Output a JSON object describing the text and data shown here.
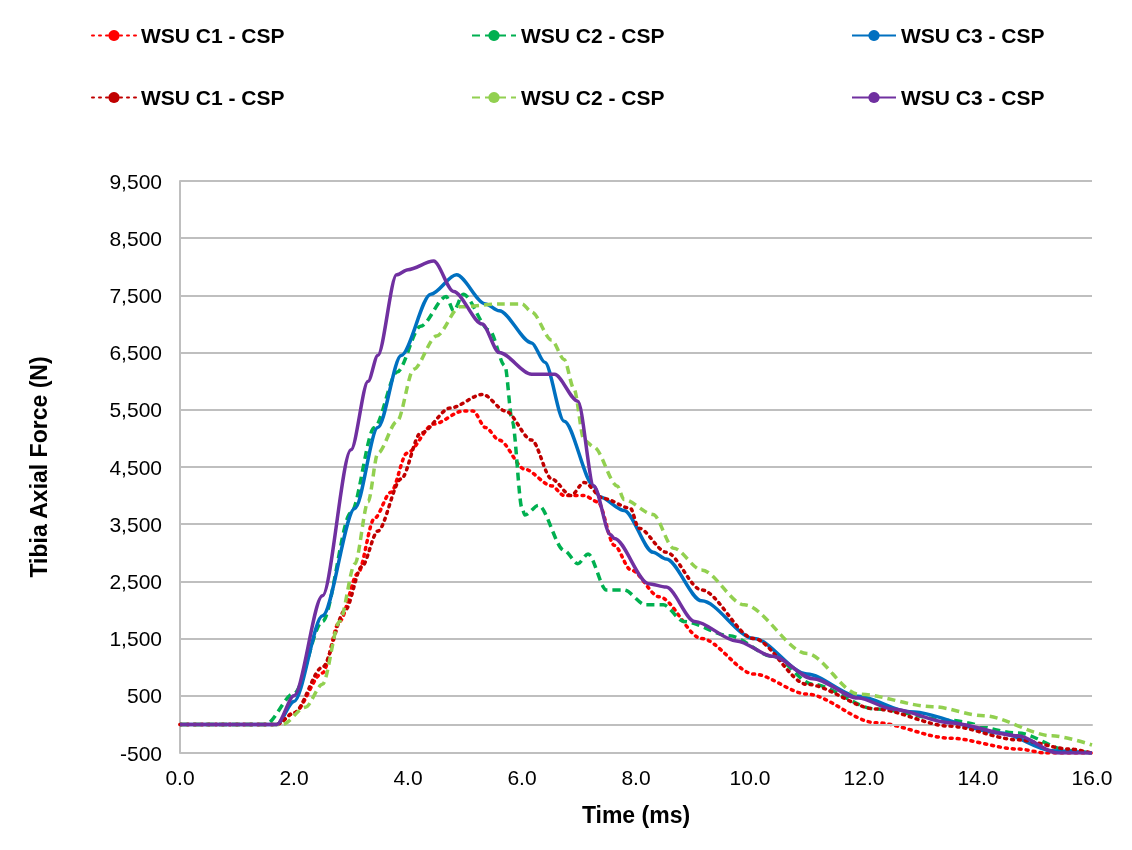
{
  "chart_data": {
    "type": "line",
    "xlabel": "Time (ms)",
    "ylabel": "Tibia Axial Force (N)",
    "xlim": [
      0,
      16
    ],
    "xticks": [
      {
        "value": 0,
        "label": "0.0"
      },
      {
        "value": 2,
        "label": "2.0"
      },
      {
        "value": 4,
        "label": "4.0"
      },
      {
        "value": 6,
        "label": "6.0"
      },
      {
        "value": 8,
        "label": "8.0"
      },
      {
        "value": 10,
        "label": "10.0"
      },
      {
        "value": 12,
        "label": "12.0"
      },
      {
        "value": 14,
        "label": "14.0"
      },
      {
        "value": 16,
        "label": "16.0"
      }
    ],
    "ylim": [
      -500,
      9500
    ],
    "yticks": [
      -500,
      500,
      {
        "value": 1500,
        "label": "1,500"
      },
      {
        "value": 2500,
        "label": "2,500"
      },
      {
        "value": 3500,
        "label": "3,500"
      },
      {
        "value": 4500,
        "label": "4,500"
      },
      {
        "value": 5500,
        "label": "5,500"
      },
      {
        "value": 6500,
        "label": "6,500"
      },
      {
        "value": 7500,
        "label": "7,500"
      },
      {
        "value": 8500,
        "label": "8,500"
      },
      {
        "value": 9500,
        "label": "9,500"
      }
    ],
    "grid": "y",
    "legend": "top",
    "marker": "none",
    "ref_lines": [
      {
        "axis": "y",
        "value": 0,
        "color": "#bfbfbf"
      }
    ],
    "series": [
      {
        "name": "WSU C1 - CSP",
        "color": "#ff0000",
        "line_style": "dotted",
        "x": [
          0,
          1.7,
          2.0,
          2.5,
          2.8,
          3.12,
          3.41,
          3.7,
          3.98,
          4.45,
          4.97,
          5.14,
          5.36,
          5.6,
          6.05,
          6.52,
          6.74,
          7.09,
          7.33,
          7.62,
          7.91,
          8.41,
          9.15,
          10.07,
          11,
          12.2,
          13.5,
          14.7,
          15.2,
          16
        ],
        "values": [
          0,
          0,
          200,
          900,
          1800,
          2640,
          3600,
          4060,
          4740,
          5250,
          5480,
          5480,
          5190,
          4970,
          4460,
          4170,
          4000,
          4000,
          3890,
          3130,
          2700,
          2230,
          1500,
          880,
          530,
          30,
          -240,
          -430,
          -500,
          -500
        ]
      },
      {
        "name": "WSU C2 - CSP",
        "color": "#00b050",
        "line_style": "dashed",
        "x": [
          0,
          1.5,
          2.0,
          2.5,
          3.0,
          3.41,
          3.81,
          4.22,
          4.67,
          4.8,
          4.97,
          5.43,
          5.7,
          5.83,
          6.0,
          6.05,
          6.29,
          6.74,
          6.98,
          7.16,
          7.48,
          7.79,
          8.17,
          8.48,
          8.84,
          9.64,
          10.4,
          11.1,
          12.2,
          13.5,
          14.7,
          15.6,
          16
        ],
        "values": [
          0,
          0,
          540,
          1800,
          3700,
          5190,
          6160,
          6960,
          7480,
          7230,
          7520,
          6890,
          6270,
          5300,
          3780,
          3660,
          3830,
          3040,
          2810,
          2980,
          2350,
          2350,
          2090,
          2090,
          1800,
          1550,
          1190,
          700,
          270,
          70,
          -150,
          -460,
          -500
        ]
      },
      {
        "name": "WSU C3 - CSP",
        "color": "#0070c0",
        "line_style": "solid",
        "x": [
          0,
          1.7,
          2.0,
          2.5,
          3.07,
          3.47,
          3.88,
          4.4,
          4.85,
          5.36,
          5.6,
          6.17,
          6.4,
          6.74,
          7.26,
          7.36,
          7.79,
          8.3,
          8.53,
          9.15,
          10.07,
          11,
          11.9,
          12.8,
          14.4,
          15.3,
          16
        ],
        "values": [
          0,
          0,
          400,
          1900,
          3780,
          5190,
          6450,
          7520,
          7860,
          7350,
          7230,
          6670,
          6330,
          5300,
          4170,
          3980,
          3740,
          3010,
          2890,
          2160,
          1500,
          880,
          490,
          220,
          -150,
          -460,
          -500
        ]
      },
      {
        "name": "WSU C1 - CSP",
        "color": "#c00000",
        "line_style": "dotted",
        "x": [
          0,
          1.7,
          2.0,
          2.5,
          2.9,
          3.19,
          3.47,
          3.88,
          4.22,
          4.74,
          5.31,
          5.71,
          6.17,
          6.52,
          6.86,
          7.09,
          7.43,
          7.9,
          8.05,
          8.53,
          9.15,
          10.07,
          11,
          12.2,
          13.5,
          14.7,
          15.6,
          16
        ],
        "values": [
          0,
          0,
          200,
          1000,
          2000,
          2760,
          3380,
          4290,
          5090,
          5530,
          5770,
          5480,
          4970,
          4290,
          4000,
          4230,
          3950,
          3780,
          3430,
          3010,
          2350,
          1500,
          700,
          270,
          -30,
          -270,
          -430,
          -500
        ]
      },
      {
        "name": "WSU C2 - CSP",
        "color": "#92d050",
        "line_style": "dashed",
        "x": [
          0,
          1.8,
          2.2,
          2.5,
          2.8,
          3.07,
          3.3,
          3.47,
          3.81,
          4.1,
          4.5,
          4.91,
          5.6,
          6.0,
          6.17,
          6.52,
          6.74,
          6.91,
          7.09,
          7.26,
          7.67,
          7.79,
          8.3,
          8.66,
          9.15,
          9.9,
          11,
          11.9,
          13.2,
          14.1,
          15.3,
          16
        ],
        "values": [
          0,
          0,
          300,
          700,
          1800,
          2810,
          3890,
          4740,
          5300,
          6210,
          6790,
          7300,
          7350,
          7350,
          7210,
          6720,
          6380,
          5870,
          4970,
          4850,
          4170,
          3930,
          3670,
          3080,
          2700,
          2090,
          1240,
          530,
          310,
          150,
          -200,
          -360
        ]
      },
      {
        "name": "WSU C3 - CSP",
        "color": "#7030a0",
        "line_style": "solid",
        "x": [
          0,
          1.7,
          2.0,
          2.5,
          3.0,
          3.3,
          3.47,
          3.8,
          4.0,
          4.45,
          4.8,
          5.3,
          5.6,
          6.17,
          6.57,
          6.98,
          7.26,
          7.55,
          7.62,
          8.22,
          8.53,
          9.03,
          9.76,
          10.4,
          11.1,
          11.9,
          12.5,
          13.5,
          14.7,
          15.4,
          16
        ],
        "values": [
          0,
          0,
          500,
          2250,
          4800,
          6000,
          6450,
          7860,
          7950,
          8100,
          7570,
          7000,
          6500,
          6120,
          6120,
          5650,
          4170,
          3320,
          3250,
          2460,
          2400,
          1800,
          1460,
          1190,
          800,
          460,
          270,
          30,
          -200,
          -500,
          -500
        ]
      }
    ]
  }
}
